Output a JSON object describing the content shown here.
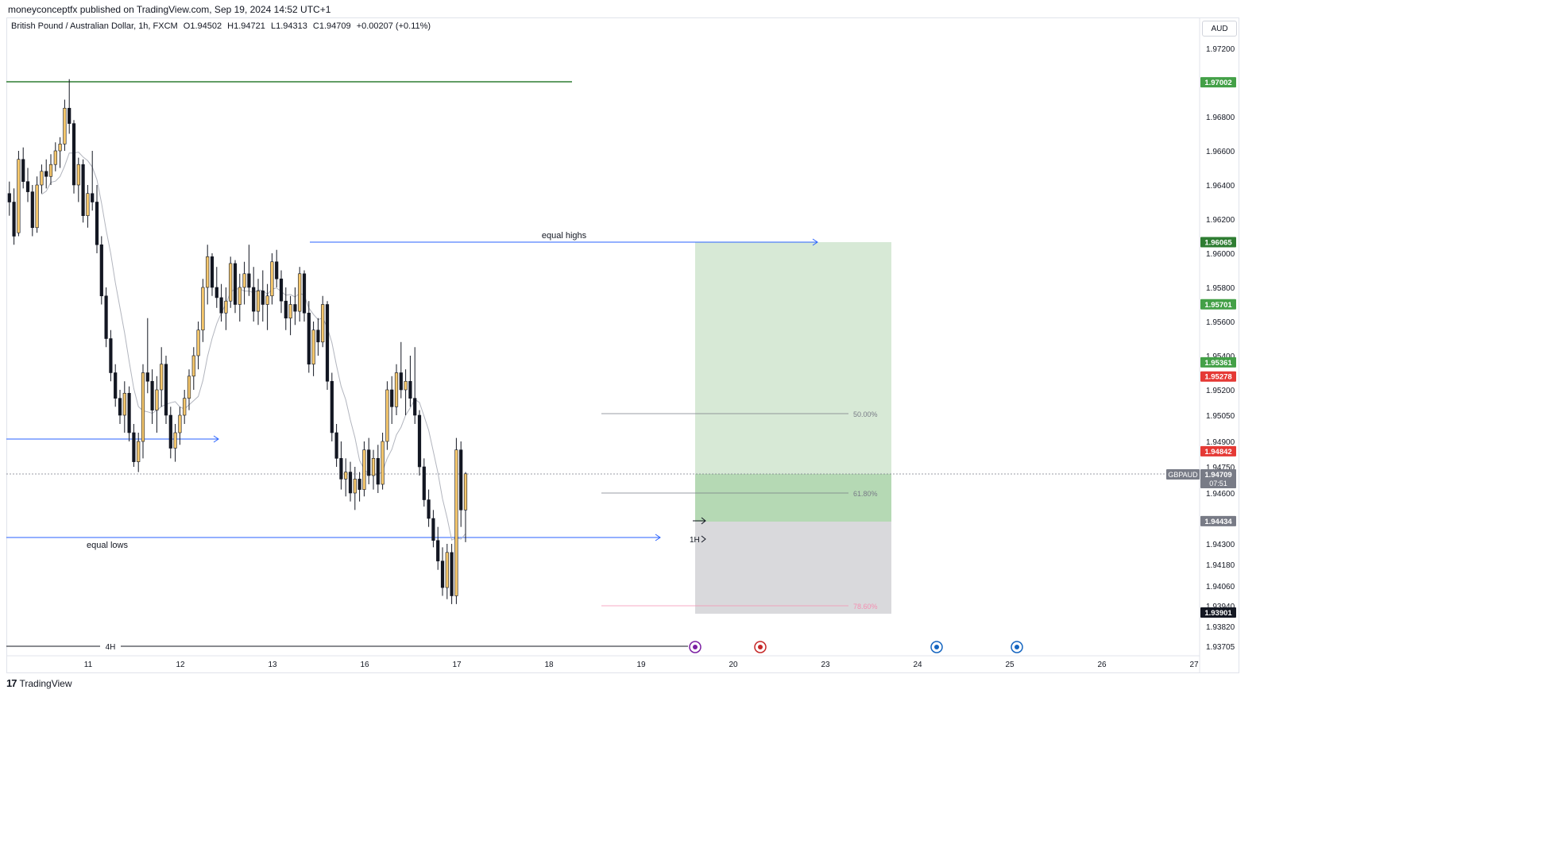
{
  "publisher_line": "moneyconceptfx published on TradingView.com, Sep 19, 2024 14:52 UTC+1",
  "legend": {
    "symbol": "British Pound / Australian Dollar, 1h, FXCM",
    "open": "O1.94502",
    "high": "H1.94721",
    "low": "L1.94313",
    "close": "C1.94709",
    "change": "+0.00207 (+0.11%)"
  },
  "currency_button": "AUD",
  "footer_brand": "TradingView",
  "footer_mark": "17",
  "chart_data": {
    "type": "candlestick",
    "symbol": "GBPAUD",
    "interval": "1h",
    "y_axis_ticks": [
      "1.97200",
      "1.96800",
      "1.96600",
      "1.96400",
      "1.96200",
      "1.96000",
      "1.95800",
      "1.95600",
      "1.95400",
      "1.95200",
      "1.95050",
      "1.94900",
      "1.94750",
      "1.94600",
      "1.94300",
      "1.94180",
      "1.94060",
      "1.93940",
      "1.93820",
      "1.93705"
    ],
    "x_axis_ticks": [
      "11",
      "12",
      "13",
      "16",
      "17",
      "18",
      "19",
      "20",
      "23",
      "24",
      "25",
      "26",
      "27"
    ],
    "price_labels": [
      {
        "value": "1.97002",
        "color": "#43a047"
      },
      {
        "value": "1.96065",
        "color": "#2e7d32"
      },
      {
        "value": "1.95701",
        "color": "#43a047"
      },
      {
        "value": "1.95361",
        "color": "#43a047"
      },
      {
        "value": "1.95278",
        "color": "#e53935"
      },
      {
        "value": "1.94842",
        "color": "#e53935"
      },
      {
        "value": "1.94434",
        "color": "#787b86"
      },
      {
        "value": "1.93901",
        "color": "#131722"
      }
    ],
    "current_price": {
      "symbol": "GBPAUD",
      "value": "1.94709",
      "countdown": "07:51",
      "color": "#787b86"
    },
    "annotations": {
      "equal_highs": "equal highs",
      "equal_lows": "equal lows",
      "fib_50": "50.00%",
      "fib_618": "61.80%",
      "fib_786": "78.60%",
      "tf_1h": "1H",
      "tf_4h": "4H"
    },
    "colors": {
      "bull": "#f5c76c",
      "bear": "#131722",
      "ma": "#b2b5be",
      "hline": "#2e7d32",
      "arrow": "#2962ff",
      "target": "#d7e9d6",
      "target_dark": "#b5d9b4",
      "stop": "#d9d9dc"
    },
    "candles_ohlc_note": "approximate hourly OHLC read from the chart",
    "candles": [
      [
        1.9635,
        1.9642,
        1.9622,
        1.963
      ],
      [
        1.963,
        1.9638,
        1.9605,
        1.961
      ],
      [
        1.9612,
        1.966,
        1.961,
        1.9655
      ],
      [
        1.9655,
        1.9662,
        1.9638,
        1.9642
      ],
      [
        1.9642,
        1.965,
        1.963,
        1.9636
      ],
      [
        1.9636,
        1.964,
        1.961,
        1.9615
      ],
      [
        1.9615,
        1.9645,
        1.9612,
        1.964
      ],
      [
        1.964,
        1.9652,
        1.9635,
        1.9648
      ],
      [
        1.9648,
        1.9655,
        1.9638,
        1.9645
      ],
      [
        1.9645,
        1.9658,
        1.964,
        1.9652
      ],
      [
        1.9652,
        1.9665,
        1.9648,
        1.966
      ],
      [
        1.966,
        1.9668,
        1.965,
        1.9664
      ],
      [
        1.9664,
        1.969,
        1.966,
        1.9685
      ],
      [
        1.9685,
        1.9702,
        1.967,
        1.9676
      ],
      [
        1.9676,
        1.9678,
        1.9635,
        1.964
      ],
      [
        1.964,
        1.9656,
        1.963,
        1.9652
      ],
      [
        1.9652,
        1.9655,
        1.9618,
        1.9622
      ],
      [
        1.9622,
        1.964,
        1.9615,
        1.9635
      ],
      [
        1.9635,
        1.966,
        1.9625,
        1.963
      ],
      [
        1.963,
        1.964,
        1.96,
        1.9605
      ],
      [
        1.9605,
        1.961,
        1.957,
        1.9575
      ],
      [
        1.9575,
        1.958,
        1.9545,
        1.955
      ],
      [
        1.955,
        1.9555,
        1.9525,
        1.953
      ],
      [
        1.953,
        1.9535,
        1.951,
        1.9515
      ],
      [
        1.9515,
        1.952,
        1.95,
        1.9505
      ],
      [
        1.9505,
        1.9525,
        1.9495,
        1.9518
      ],
      [
        1.9518,
        1.9522,
        1.949,
        1.9495
      ],
      [
        1.9495,
        1.95,
        1.9475,
        1.9478
      ],
      [
        1.9478,
        1.9495,
        1.9472,
        1.949
      ],
      [
        1.949,
        1.9535,
        1.948,
        1.953
      ],
      [
        1.953,
        1.9562,
        1.9518,
        1.9525
      ],
      [
        1.9525,
        1.9532,
        1.95,
        1.9508
      ],
      [
        1.9508,
        1.9528,
        1.9495,
        1.952
      ],
      [
        1.952,
        1.9545,
        1.951,
        1.9535
      ],
      [
        1.9535,
        1.954,
        1.95,
        1.9505
      ],
      [
        1.9505,
        1.951,
        1.948,
        1.9486
      ],
      [
        1.9486,
        1.95,
        1.9478,
        1.9495
      ],
      [
        1.9495,
        1.951,
        1.9488,
        1.9505
      ],
      [
        1.9505,
        1.952,
        1.95,
        1.9515
      ],
      [
        1.9515,
        1.9532,
        1.9508,
        1.9528
      ],
      [
        1.9528,
        1.9545,
        1.952,
        1.954
      ],
      [
        1.954,
        1.956,
        1.9532,
        1.9555
      ],
      [
        1.9555,
        1.9585,
        1.9548,
        1.958
      ],
      [
        1.958,
        1.9605,
        1.957,
        1.9598
      ],
      [
        1.9598,
        1.96,
        1.9575,
        1.958
      ],
      [
        1.958,
        1.9592,
        1.9568,
        1.9574
      ],
      [
        1.9574,
        1.9582,
        1.956,
        1.9565
      ],
      [
        1.9565,
        1.958,
        1.9555,
        1.9572
      ],
      [
        1.9572,
        1.9598,
        1.9568,
        1.9594
      ],
      [
        1.9594,
        1.9596,
        1.9565,
        1.957
      ],
      [
        1.957,
        1.9588,
        1.956,
        1.958
      ],
      [
        1.958,
        1.9595,
        1.957,
        1.9588
      ],
      [
        1.9588,
        1.9605,
        1.9575,
        1.958
      ],
      [
        1.958,
        1.9592,
        1.956,
        1.9566
      ],
      [
        1.9566,
        1.9585,
        1.9558,
        1.9578
      ],
      [
        1.9578,
        1.959,
        1.956,
        1.957
      ],
      [
        1.957,
        1.9582,
        1.9555,
        1.9575
      ],
      [
        1.9575,
        1.96,
        1.957,
        1.9595
      ],
      [
        1.9595,
        1.9602,
        1.958,
        1.9585
      ],
      [
        1.9585,
        1.959,
        1.9565,
        1.9572
      ],
      [
        1.9572,
        1.958,
        1.9555,
        1.9562
      ],
      [
        1.9562,
        1.9575,
        1.9552,
        1.957
      ],
      [
        1.957,
        1.958,
        1.9558,
        1.9566
      ],
      [
        1.9566,
        1.9592,
        1.956,
        1.9588
      ],
      [
        1.9588,
        1.959,
        1.956,
        1.9565
      ],
      [
        1.9565,
        1.9572,
        1.953,
        1.9535
      ],
      [
        1.9535,
        1.956,
        1.9528,
        1.9555
      ],
      [
        1.9555,
        1.9562,
        1.954,
        1.9548
      ],
      [
        1.9548,
        1.9575,
        1.9545,
        1.957
      ],
      [
        1.957,
        1.9572,
        1.952,
        1.9525
      ],
      [
        1.9525,
        1.953,
        1.949,
        1.9495
      ],
      [
        1.9495,
        1.95,
        1.9475,
        1.948
      ],
      [
        1.948,
        1.949,
        1.9462,
        1.9468
      ],
      [
        1.9468,
        1.948,
        1.9458,
        1.9472
      ],
      [
        1.9472,
        1.9478,
        1.9455,
        1.946
      ],
      [
        1.946,
        1.9475,
        1.945,
        1.9468
      ],
      [
        1.9468,
        1.9472,
        1.9455,
        1.9462
      ],
      [
        1.9462,
        1.949,
        1.9458,
        1.9485
      ],
      [
        1.9485,
        1.9492,
        1.9465,
        1.947
      ],
      [
        1.947,
        1.9485,
        1.9462,
        1.948
      ],
      [
        1.948,
        1.9488,
        1.946,
        1.9465
      ],
      [
        1.9465,
        1.9495,
        1.9462,
        1.949
      ],
      [
        1.949,
        1.9525,
        1.9485,
        1.952
      ],
      [
        1.952,
        1.9528,
        1.95,
        1.951
      ],
      [
        1.951,
        1.9535,
        1.9505,
        1.953
      ],
      [
        1.953,
        1.9548,
        1.9515,
        1.952
      ],
      [
        1.952,
        1.9532,
        1.9505,
        1.9525
      ],
      [
        1.9525,
        1.954,
        1.951,
        1.9515
      ],
      [
        1.9515,
        1.9545,
        1.95,
        1.9505
      ],
      [
        1.9505,
        1.9508,
        1.947,
        1.9475
      ],
      [
        1.9475,
        1.948,
        1.9452,
        1.9456
      ],
      [
        1.9456,
        1.9462,
        1.944,
        1.9445
      ],
      [
        1.9445,
        1.945,
        1.9428,
        1.9432
      ],
      [
        1.9432,
        1.944,
        1.9415,
        1.942
      ],
      [
        1.942,
        1.9428,
        1.94,
        1.9405
      ],
      [
        1.9405,
        1.943,
        1.9398,
        1.9425
      ],
      [
        1.9425,
        1.943,
        1.9395,
        1.94
      ],
      [
        1.94,
        1.9492,
        1.9395,
        1.9485
      ],
      [
        1.9485,
        1.949,
        1.944,
        1.945
      ],
      [
        1.945,
        1.9472,
        1.9431,
        1.9471
      ]
    ]
  }
}
